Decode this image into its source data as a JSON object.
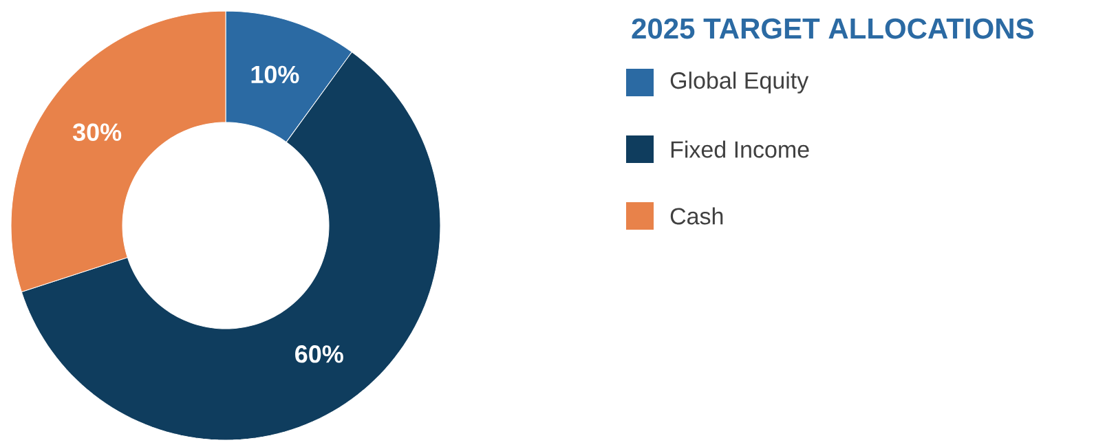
{
  "chart_data": {
    "type": "donut",
    "title": "2025 TARGET ALLOCATIONS",
    "categories": [
      "Global Equity",
      "Fixed Income",
      "Cash"
    ],
    "values": [
      10,
      60,
      30
    ],
    "value_labels": [
      "10%",
      "60%",
      "30%"
    ],
    "colors": [
      "#2b6aa3",
      "#0f3d5e",
      "#e8824a"
    ],
    "legend": "right"
  }
}
